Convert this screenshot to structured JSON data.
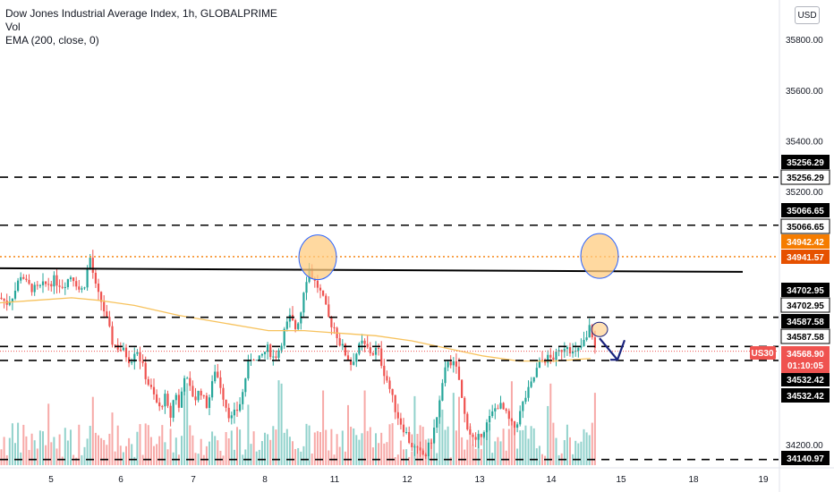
{
  "legend": {
    "title": "Dow Jones Industrial Average Index, 1h, GLOBALPRIME",
    "vol": "Vol",
    "ema": "EMA (200, close, 0)"
  },
  "currency_button": "USD",
  "colors": {
    "up": "#26a69a",
    "down": "#ef5350",
    "ema": "#f7c25c",
    "level": "#000000",
    "orange_level": "#f57c00",
    "circle_fill": "#ffcc80",
    "circle_stroke": "#2962ff",
    "arrow": "#1a237e",
    "symbol_tag": "#ef5350"
  },
  "chart_data": {
    "type": "candlestick",
    "symbol": "US30",
    "interval": "1h",
    "y_ticks": [
      "35800.00",
      "35600.00",
      "35400.00",
      "35200.00",
      "34200.00"
    ],
    "x_ticks": [
      "5",
      "6",
      "7",
      "8",
      "11",
      "12",
      "13",
      "14",
      "15",
      "18",
      "19"
    ],
    "price_tags": [
      {
        "text": "35256.29",
        "style": "black"
      },
      {
        "text": "35256.29",
        "style": "white"
      },
      {
        "text": "35066.65",
        "style": "black"
      },
      {
        "text": "35066.65",
        "style": "white"
      },
      {
        "text": "34942.42",
        "style": "orange"
      },
      {
        "text": "34941.57",
        "style": "orange-dark"
      },
      {
        "text": "34702.95",
        "style": "black"
      },
      {
        "text": "34702.95",
        "style": "white"
      },
      {
        "text": "34587.58",
        "style": "black"
      },
      {
        "text": "34587.58",
        "style": "white"
      },
      {
        "text": "34532.42",
        "style": "black"
      },
      {
        "text": "34532.42",
        "style": "black"
      },
      {
        "text": "34140.97",
        "style": "black"
      }
    ],
    "symbol_tag": {
      "label": "US30",
      "price": "34568.90",
      "countdown": "01:10:05"
    },
    "dashed_levels": [
      35256.29,
      35066.65,
      34702.95,
      34587.58,
      34532.42,
      34140.97
    ],
    "orange_level": 34942.42,
    "resistance_line": 34900,
    "close_path": [
      [
        0,
        34780
      ],
      [
        8,
        34760
      ],
      [
        16,
        34800
      ],
      [
        24,
        34880
      ],
      [
        30,
        34830
      ],
      [
        40,
        34810
      ],
      [
        50,
        34830
      ],
      [
        60,
        34850
      ],
      [
        70,
        34830
      ],
      [
        80,
        34870
      ],
      [
        84,
        34850
      ],
      [
        90,
        34800
      ],
      [
        96,
        34850
      ],
      [
        100,
        34950
      ],
      [
        108,
        34800
      ],
      [
        114,
        34760
      ],
      [
        120,
        34680
      ],
      [
        126,
        34600
      ],
      [
        134,
        34580
      ],
      [
        140,
        34560
      ],
      [
        146,
        34530
      ],
      [
        152,
        34590
      ],
      [
        160,
        34500
      ],
      [
        166,
        34440
      ],
      [
        172,
        34390
      ],
      [
        178,
        34340
      ],
      [
        184,
        34390
      ],
      [
        190,
        34300
      ],
      [
        196,
        34420
      ],
      [
        200,
        34340
      ],
      [
        206,
        34480
      ],
      [
        212,
        34420
      ],
      [
        218,
        34380
      ],
      [
        224,
        34420
      ],
      [
        230,
        34350
      ],
      [
        236,
        34410
      ],
      [
        240,
        34500
      ],
      [
        246,
        34440
      ],
      [
        252,
        34360
      ],
      [
        258,
        34300
      ],
      [
        264,
        34330
      ],
      [
        270,
        34380
      ],
      [
        276,
        34500
      ],
      [
        282,
        34560
      ],
      [
        288,
        34520
      ],
      [
        294,
        34560
      ],
      [
        300,
        34580
      ],
      [
        306,
        34540
      ],
      [
        312,
        34580
      ],
      [
        318,
        34650
      ],
      [
        324,
        34700
      ],
      [
        330,
        34660
      ],
      [
        336,
        34720
      ],
      [
        340,
        34830
      ],
      [
        346,
        34900
      ],
      [
        350,
        34850
      ],
      [
        356,
        34820
      ],
      [
        362,
        34760
      ],
      [
        368,
        34690
      ],
      [
        374,
        34660
      ],
      [
        380,
        34600
      ],
      [
        386,
        34560
      ],
      [
        392,
        34520
      ],
      [
        398,
        34560
      ],
      [
        404,
        34600
      ],
      [
        410,
        34580
      ],
      [
        416,
        34560
      ],
      [
        422,
        34580
      ],
      [
        428,
        34500
      ],
      [
        434,
        34440
      ],
      [
        440,
        34360
      ],
      [
        446,
        34300
      ],
      [
        452,
        34260
      ],
      [
        458,
        34210
      ],
      [
        464,
        34180
      ],
      [
        470,
        34160
      ],
      [
        476,
        34160
      ],
      [
        482,
        34220
      ],
      [
        488,
        34300
      ],
      [
        494,
        34420
      ],
      [
        500,
        34540
      ],
      [
        506,
        34520
      ],
      [
        512,
        34480
      ],
      [
        516,
        34380
      ],
      [
        520,
        34300
      ],
      [
        526,
        34240
      ],
      [
        532,
        34200
      ],
      [
        538,
        34250
      ],
      [
        544,
        34280
      ],
      [
        550,
        34320
      ],
      [
        556,
        34360
      ],
      [
        562,
        34340
      ],
      [
        568,
        34300
      ],
      [
        574,
        34260
      ],
      [
        580,
        34310
      ],
      [
        586,
        34380
      ],
      [
        592,
        34420
      ],
      [
        598,
        34480
      ],
      [
        604,
        34530
      ],
      [
        610,
        34540
      ],
      [
        616,
        34540
      ],
      [
        622,
        34550
      ],
      [
        628,
        34580
      ],
      [
        634,
        34600
      ],
      [
        640,
        34560
      ],
      [
        644,
        34560
      ],
      [
        648,
        34580
      ],
      [
        652,
        34600
      ],
      [
        656,
        34620
      ],
      [
        660,
        34680
      ],
      [
        664,
        34580
      ],
      [
        668,
        34568.9
      ]
    ],
    "ema_path": [
      [
        0,
        34760
      ],
      [
        40,
        34770
      ],
      [
        80,
        34780
      ],
      [
        110,
        34770
      ],
      [
        150,
        34750
      ],
      [
        200,
        34710
      ],
      [
        250,
        34680
      ],
      [
        300,
        34650
      ],
      [
        340,
        34650
      ],
      [
        380,
        34640
      ],
      [
        420,
        34630
      ],
      [
        460,
        34610
      ],
      [
        500,
        34580
      ],
      [
        540,
        34550
      ],
      [
        580,
        34530
      ],
      [
        620,
        34530
      ],
      [
        660,
        34540
      ]
    ],
    "annotations": {
      "circles": [
        [
          355,
          34940
        ],
        [
          670,
          34945
        ]
      ],
      "small_circle": [
        670,
        34655
      ],
      "arrow_from": [
        670,
        34620
      ],
      "arrow_to": [
        696,
        34535
      ]
    }
  }
}
